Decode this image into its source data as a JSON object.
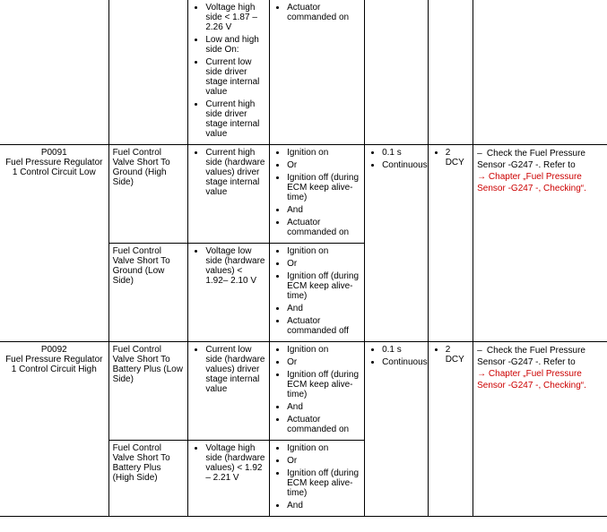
{
  "cols": [
    120,
    88,
    90,
    105,
    70,
    50,
    148
  ],
  "rows": [
    {
      "top_open": true,
      "cells": [
        {
          "open_left": true
        },
        {},
        {
          "list": [
            "Voltage high side < 1.87 – 2.26 V",
            "Low and high side On:",
            "Current low side driver stage internal value",
            "Current high side driver stage internal value"
          ]
        },
        {
          "list": [
            "Actuator commanded on"
          ]
        },
        {},
        {},
        {
          "open_right": true
        }
      ]
    },
    {
      "cells": [
        {
          "open_left": true,
          "rowspan": 2,
          "center": true,
          "lines": [
            "P0091",
            "Fuel Pressure Regulator 1 Control Circuit Low"
          ]
        },
        {
          "text": "Fuel Control Valve Short To Ground (High Side)"
        },
        {
          "list": [
            "Current high side (hardware values) driver stage internal value"
          ]
        },
        {
          "list": [
            "Ignition on",
            "Or",
            "Ignition off (during ECM keep alive-time)",
            "And",
            "Actuator commanded on"
          ]
        },
        {
          "rowspan": 2,
          "list": [
            "0.1 s",
            "Continuous"
          ]
        },
        {
          "rowspan": 2,
          "list": [
            "2 DCY"
          ]
        },
        {
          "open_right": true,
          "rowspan": 2,
          "dash": {
            "plain": "Check the Fuel Pressure Sensor -G247 -. Refer to",
            "red": "→ Chapter „Fuel Pressure Sensor -G247 -, Checking“."
          }
        }
      ]
    },
    {
      "cells": [
        {
          "text": "Fuel Control Valve Short To Ground (Low Side)"
        },
        {
          "list": [
            "Voltage low side (hardware values) < 1.92– 2.10 V"
          ]
        },
        {
          "list": [
            "Ignition on",
            "Or",
            "Ignition off (during ECM keep alive-time)",
            "And",
            "Actuator commanded off"
          ]
        }
      ]
    },
    {
      "bottom_open": true,
      "cells": [
        {
          "open_left": true,
          "rowspan": 2,
          "center": true,
          "lines": [
            "P0092",
            "Fuel Pressure Regulator 1 Control Circuit High"
          ]
        },
        {
          "text": "Fuel Control Valve Short To Battery Plus (Low Side)"
        },
        {
          "list": [
            "Current low side (hardware values) driver stage internal value"
          ]
        },
        {
          "list": [
            "Ignition on",
            "Or",
            "Ignition off (during ECM keep alive-time)",
            "And",
            "Actuator commanded on"
          ]
        },
        {
          "rowspan": 2,
          "list": [
            "0.1 s",
            "Continuous"
          ]
        },
        {
          "rowspan": 2,
          "list": [
            "2 DCY"
          ]
        },
        {
          "open_right": true,
          "rowspan": 2,
          "dash": {
            "plain": "Check the Fuel Pressure Sensor -G247 -. Refer to",
            "red": "→ Chapter „Fuel Pressure Sensor -G247 -, Checking“."
          }
        }
      ]
    },
    {
      "bottom_open": true,
      "cells": [
        {
          "text": "Fuel Control Valve Short To Battery Plus (High Side)"
        },
        {
          "list": [
            "Voltage high side (hardware values) < 1.92 – 2.21 V"
          ]
        },
        {
          "list": [
            "Ignition on",
            "Or",
            "Ignition off (during ECM keep alive-time)",
            "And"
          ]
        }
      ]
    }
  ]
}
